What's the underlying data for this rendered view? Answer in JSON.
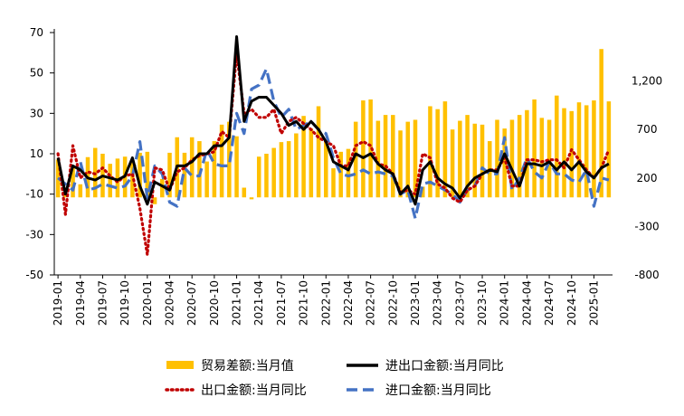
{
  "chart_data": {
    "type": "bar+line",
    "title": "",
    "x_tick_labels": [
      "2019-01",
      "2019-04",
      "2019-07",
      "2019-10",
      "2020-01",
      "2020-04",
      "2020-07",
      "2020-10",
      "2021-01",
      "2021-04",
      "2021-07",
      "2021-10",
      "2022-01",
      "2022-04",
      "2022-07",
      "2022-10",
      "2023-01",
      "2023-04",
      "2023-07",
      "2023-10",
      "2024-01",
      "2024-04",
      "2024-07",
      "2024-10",
      "2025-01"
    ],
    "x_tick_step": 3,
    "months": [
      "2019-01",
      "2019-02",
      "2019-03",
      "2019-04",
      "2019-05",
      "2019-06",
      "2019-07",
      "2019-08",
      "2019-09",
      "2019-10",
      "2019-11",
      "2019-12",
      "2020-01",
      "2020-02",
      "2020-03",
      "2020-04",
      "2020-05",
      "2020-06",
      "2020-07",
      "2020-08",
      "2020-09",
      "2020-10",
      "2020-11",
      "2020-12",
      "2021-01",
      "2021-02",
      "2021-03",
      "2021-04",
      "2021-05",
      "2021-06",
      "2021-07",
      "2021-08",
      "2021-09",
      "2021-10",
      "2021-11",
      "2021-12",
      "2022-01",
      "2022-02",
      "2022-03",
      "2022-04",
      "2022-05",
      "2022-06",
      "2022-07",
      "2022-08",
      "2022-09",
      "2022-10",
      "2022-11",
      "2022-12",
      "2023-01",
      "2023-02",
      "2023-03",
      "2023-04",
      "2023-05",
      "2023-06",
      "2023-07",
      "2023-08",
      "2023-09",
      "2023-10",
      "2023-11",
      "2023-12",
      "2024-01",
      "2024-02",
      "2024-03",
      "2024-04",
      "2024-05",
      "2024-06",
      "2024-07",
      "2024-08",
      "2024-09",
      "2024-10",
      "2024-11",
      "2024-12",
      "2025-01",
      "2025-02",
      "2025-03"
    ],
    "left_axis": {
      "min": -50,
      "max": 70,
      "ticks": [
        -50,
        -30,
        -10,
        10,
        30,
        50,
        70
      ]
    },
    "right_axis": {
      "min": -800,
      "max": 1700,
      "ticks": [
        "-800",
        "-300",
        "200",
        "700",
        "1,200"
      ]
    },
    "series": [
      {
        "name": "贸易差额:当月值",
        "type": "bar",
        "axis": "right",
        "color": "#FFC000",
        "values": [
          390,
          40,
          320,
          135,
          415,
          510,
          450,
          346,
          400,
          420,
          380,
          460,
          470,
          -70,
          190,
          460,
          620,
          460,
          620,
          580,
          370,
          580,
          750,
          780,
          630,
          100,
          -20,
          420,
          450,
          510,
          570,
          580,
          660,
          840,
          710,
          940,
          590,
          300,
          470,
          500,
          780,
          1000,
          1010,
          790,
          850,
          850,
          690,
          780,
          800,
          110,
          940,
          910,
          990,
          700,
          790,
          850,
          760,
          750,
          580,
          800,
          710,
          800,
          850,
          900,
          1010,
          820,
          800,
          1050,
          920,
          890,
          980,
          950,
          1000,
          1530,
          990
        ]
      },
      {
        "name": "进出口金额:当月同比",
        "type": "line",
        "axis": "left",
        "color": "#000000",
        "style": "solid",
        "values": [
          8,
          -10,
          4,
          2,
          -2,
          -3,
          -1,
          -2,
          -3,
          -1,
          8,
          -6,
          -15,
          -4,
          -6,
          -8,
          4,
          4,
          6,
          10,
          10,
          14,
          14,
          18,
          68,
          26,
          36,
          38,
          38,
          34,
          30,
          24,
          26,
          22,
          26,
          22,
          16,
          6,
          4,
          2,
          10,
          8,
          10,
          5,
          2,
          0,
          -10,
          -6,
          -15,
          2,
          6,
          -2,
          -5,
          -7,
          -12,
          -6,
          -2,
          0,
          2,
          1,
          10,
          2,
          -6,
          5,
          5,
          4,
          6,
          2,
          6,
          2,
          6,
          1,
          -2,
          3,
          5
        ]
      },
      {
        "name": "出口金额:当月同比",
        "type": "line",
        "axis": "left",
        "color": "#C00000",
        "style": "dotted",
        "values": [
          10,
          -20,
          14,
          -2,
          1,
          0,
          3,
          -1,
          -4,
          -1,
          0,
          -17,
          -40,
          3,
          2,
          -8,
          1,
          3,
          7,
          9,
          10,
          11,
          21,
          18,
          60,
          30,
          32,
          28,
          28,
          32,
          20,
          26,
          28,
          25,
          22,
          18,
          16,
          14,
          4,
          4,
          14,
          16,
          14,
          5,
          4,
          0,
          -9,
          -8,
          -10,
          10,
          8,
          -5,
          -7,
          -12,
          -14,
          -8,
          -6,
          0,
          2,
          2,
          8,
          -6,
          -6,
          7,
          7,
          6,
          7,
          7,
          3,
          12,
          7,
          2,
          -2,
          3,
          12
        ]
      },
      {
        "name": "进口金额:当月同比",
        "type": "line",
        "axis": "left",
        "color": "#4472C4",
        "style": "dashed",
        "values": [
          -2,
          -5,
          -8,
          6,
          -8,
          -7,
          -5,
          -6,
          -7,
          -6,
          -1,
          16,
          -12,
          4,
          0,
          -14,
          -16,
          3,
          -1,
          -1,
          12,
          5,
          4,
          4,
          30,
          20,
          42,
          44,
          52,
          36,
          28,
          32,
          22,
          24,
          26,
          22,
          20,
          8,
          0,
          -1,
          0,
          2,
          0,
          1,
          0,
          -1,
          -10,
          -8,
          -22,
          -5,
          -4,
          -6,
          -8,
          -10,
          -14,
          -8,
          -6,
          3,
          0,
          0,
          18,
          -8,
          -2,
          8,
          1,
          -2,
          6,
          0,
          0,
          -3,
          -4,
          2,
          -16,
          -2,
          -3
        ]
      }
    ],
    "legend": {
      "position": "bottom",
      "items": [
        "贸易差额:当月值",
        "进出口金额:当月同比",
        "出口金额:当月同比",
        "进口金额:当月同比"
      ]
    },
    "grid": false
  }
}
